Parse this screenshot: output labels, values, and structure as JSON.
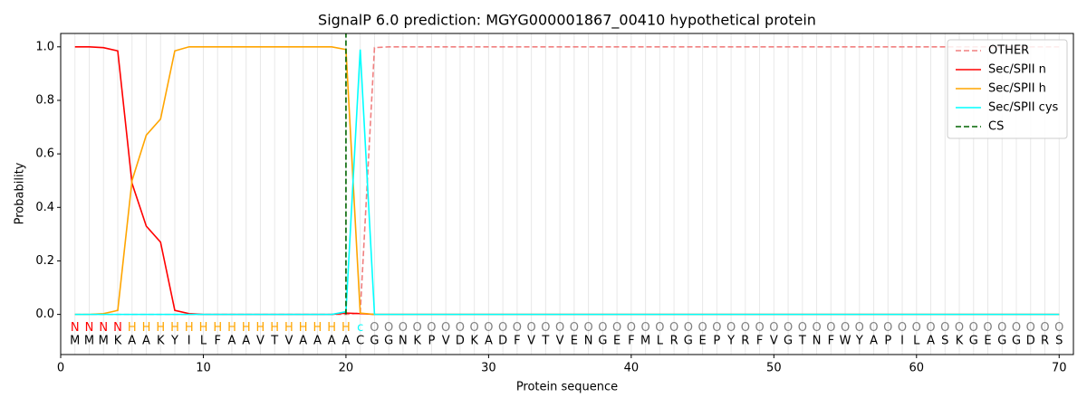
{
  "chart_data": {
    "type": "line",
    "title": "SignalP 6.0 prediction: MGYG000001867_00410 hypothetical protein",
    "xlabel": "Protein sequence",
    "ylabel": "Probability",
    "xlim": [
      0,
      71
    ],
    "ylim": [
      -0.15,
      1.05
    ],
    "xticks": [
      0,
      10,
      20,
      30,
      40,
      50,
      60,
      70
    ],
    "yticks": [
      {
        "value": 0,
        "label": "0.0"
      },
      0.2,
      0.4,
      0.6,
      0.8,
      {
        "value": 1,
        "label": "1.0"
      }
    ],
    "x": [
      1,
      2,
      3,
      4,
      5,
      6,
      7,
      8,
      9,
      10,
      11,
      12,
      13,
      14,
      15,
      16,
      17,
      18,
      19,
      20,
      21,
      22,
      23,
      24,
      25,
      26,
      27,
      28,
      29,
      30,
      31,
      32,
      33,
      34,
      35,
      36,
      37,
      38,
      39,
      40,
      41,
      42,
      43,
      44,
      45,
      46,
      47,
      48,
      49,
      50,
      51,
      52,
      53,
      54,
      55,
      56,
      57,
      58,
      59,
      60,
      61,
      62,
      63,
      64,
      65,
      66,
      67,
      68,
      69,
      70
    ],
    "sequence": [
      "M",
      "M",
      "M",
      "K",
      "A",
      "A",
      "K",
      "Y",
      "I",
      "L",
      "F",
      "A",
      "A",
      "V",
      "T",
      "V",
      "A",
      "A",
      "A",
      "A",
      "C",
      "G",
      "G",
      "N",
      "K",
      "P",
      "V",
      "D",
      "K",
      "A",
      "D",
      "F",
      "V",
      "T",
      "V",
      "E",
      "N",
      "G",
      "E",
      "F",
      "M",
      "L",
      "R",
      "G",
      "E",
      "P",
      "Y",
      "R",
      "F",
      "V",
      "G",
      "T",
      "N",
      "F",
      "W",
      "Y",
      "A",
      "P",
      "I",
      "L",
      "A",
      "S",
      "K",
      "G",
      "E",
      "G",
      "G",
      "D",
      "R",
      "S"
    ],
    "labels": [
      "N",
      "N",
      "N",
      "N",
      "H",
      "H",
      "H",
      "H",
      "H",
      "H",
      "H",
      "H",
      "H",
      "H",
      "H",
      "H",
      "H",
      "H",
      "H",
      "H",
      "c",
      "O",
      "O",
      "O",
      "O",
      "O",
      "O",
      "O",
      "O",
      "O",
      "O",
      "O",
      "O",
      "O",
      "O",
      "O",
      "O",
      "O",
      "O",
      "O",
      "O",
      "O",
      "O",
      "O",
      "O",
      "O",
      "O",
      "O",
      "O",
      "O",
      "O",
      "O",
      "O",
      "O",
      "O",
      "O",
      "O",
      "O",
      "O",
      "O",
      "O",
      "O",
      "O",
      "O",
      "O",
      "O",
      "O",
      "O",
      "O",
      "O"
    ],
    "label_colors": {
      "N": "red",
      "H": "orange",
      "c": "cyan",
      "O": "gray"
    },
    "series": [
      {
        "name": "OTHER",
        "color": "#f08080",
        "linestyle": "dashed",
        "values": [
          0,
          0,
          0,
          0,
          0,
          0,
          0,
          0,
          0,
          0,
          0,
          0,
          0,
          0,
          0,
          0,
          0,
          0,
          0,
          0,
          0.005,
          0.997,
          1,
          1,
          1,
          1,
          1,
          1,
          1,
          1,
          1,
          1,
          1,
          1,
          1,
          1,
          1,
          1,
          1,
          1,
          1,
          1,
          1,
          1,
          1,
          1,
          1,
          1,
          1,
          1,
          1,
          1,
          1,
          1,
          1,
          1,
          1,
          1,
          1,
          1,
          1,
          1,
          1,
          1,
          1,
          1,
          1,
          1,
          1,
          1
        ]
      },
      {
        "name": "Sec/SPII n",
        "color": "red",
        "linestyle": "solid",
        "values": [
          1,
          1,
          0.997,
          0.985,
          0.49,
          0.33,
          0.27,
          0.015,
          0.003,
          0,
          0,
          0,
          0,
          0,
          0,
          0,
          0,
          0,
          0,
          0.005,
          0.003,
          0,
          0,
          0,
          0,
          0,
          0,
          0,
          0,
          0,
          0,
          0,
          0,
          0,
          0,
          0,
          0,
          0,
          0,
          0,
          0,
          0,
          0,
          0,
          0,
          0,
          0,
          0,
          0,
          0,
          0,
          0,
          0,
          0,
          0,
          0,
          0,
          0,
          0,
          0,
          0,
          0,
          0,
          0,
          0,
          0,
          0,
          0,
          0,
          0
        ]
      },
      {
        "name": "Sec/SPII h",
        "color": "orange",
        "linestyle": "solid",
        "values": [
          0,
          0,
          0.003,
          0.015,
          0.5,
          0.67,
          0.73,
          0.985,
          1,
          1,
          1,
          1,
          1,
          1,
          1,
          1,
          1,
          1,
          1,
          0.99,
          0.005,
          0,
          0,
          0,
          0,
          0,
          0,
          0,
          0,
          0,
          0,
          0,
          0,
          0,
          0,
          0,
          0,
          0,
          0,
          0,
          0,
          0,
          0,
          0,
          0,
          0,
          0,
          0,
          0,
          0,
          0,
          0,
          0,
          0,
          0,
          0,
          0,
          0,
          0,
          0,
          0,
          0,
          0,
          0,
          0,
          0,
          0,
          0,
          0,
          0
        ]
      },
      {
        "name": "Sec/SPII cys",
        "color": "cyan",
        "linestyle": "solid",
        "values": [
          0,
          0,
          0,
          0,
          0,
          0,
          0,
          0,
          0,
          0,
          0,
          0,
          0,
          0,
          0,
          0,
          0,
          0,
          0,
          0.01,
          0.99,
          0,
          0,
          0,
          0,
          0,
          0,
          0,
          0,
          0,
          0,
          0,
          0,
          0,
          0,
          0,
          0,
          0,
          0,
          0,
          0,
          0,
          0,
          0,
          0,
          0,
          0,
          0,
          0,
          0,
          0,
          0,
          0,
          0,
          0,
          0,
          0,
          0,
          0,
          0,
          0,
          0,
          0,
          0,
          0,
          0,
          0,
          0,
          0,
          0
        ]
      }
    ],
    "vlines": [
      {
        "name": "CS",
        "color": "darkgreen",
        "linestyle": "dashed",
        "x": 20
      }
    ],
    "legend": "upper right"
  }
}
